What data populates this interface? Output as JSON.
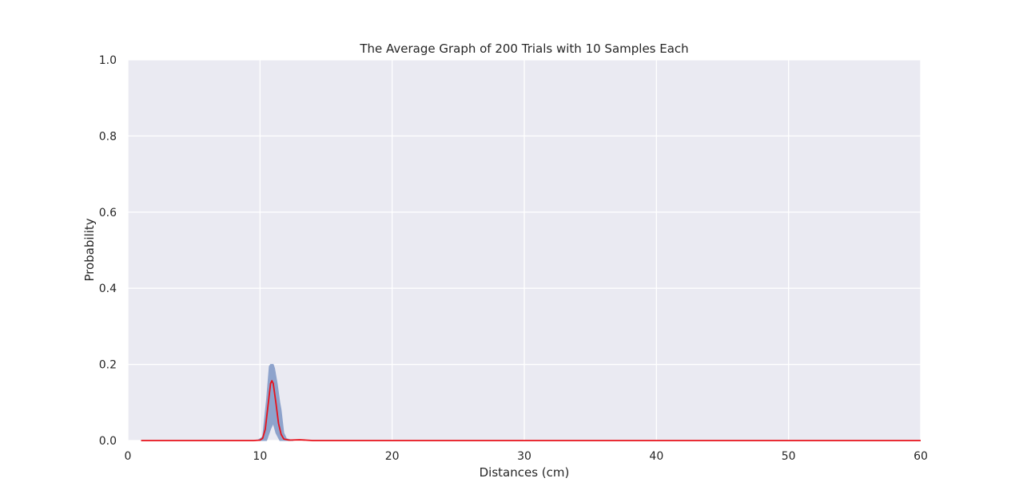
{
  "chart_data": {
    "type": "line",
    "title": "The Average Graph of 200 Trials with 10 Samples Each",
    "xlabel": "Distances (cm)",
    "ylabel": "Probability",
    "xlim": [
      0,
      60
    ],
    "ylim": [
      0,
      1.0
    ],
    "x_ticks": [
      "0",
      "10",
      "20",
      "30",
      "40",
      "50",
      "60"
    ],
    "y_ticks": [
      "0.0",
      "0.2",
      "0.4",
      "0.6",
      "0.8",
      "1.0"
    ],
    "grid": true,
    "colors": {
      "background": "#eaeaf2",
      "grid": "#ffffff",
      "mean_line": "#e8111a",
      "band": "#8ea3cc"
    },
    "series": [
      {
        "kind": "mean-line",
        "x": [
          1,
          9.5,
          10.0,
          10.2,
          10.4,
          10.6,
          10.8,
          10.9,
          11.0,
          11.2,
          11.4,
          11.6,
          11.8,
          12.2,
          13.0,
          14.0,
          60
        ],
        "y": [
          0,
          0,
          0.001,
          0.006,
          0.03,
          0.09,
          0.15,
          0.157,
          0.15,
          0.1,
          0.045,
          0.016,
          0.004,
          0.001,
          0.002,
          0,
          0
        ]
      },
      {
        "kind": "band-upper",
        "x": [
          9.8,
          10.2,
          10.5,
          10.7,
          10.8,
          11.0,
          11.1,
          11.3,
          11.5,
          11.6,
          11.7,
          11.8,
          12.0,
          12.5
        ],
        "y": [
          0,
          0.01,
          0.11,
          0.195,
          0.2,
          0.2,
          0.19,
          0.15,
          0.1,
          0.08,
          0.05,
          0.02,
          0.005,
          0
        ]
      },
      {
        "kind": "band-lower",
        "x": [
          9.8,
          10.5,
          10.8,
          11.0,
          11.2,
          11.5,
          12.5
        ],
        "y": [
          0,
          0,
          0.03,
          0.045,
          0.02,
          0,
          0
        ]
      }
    ]
  }
}
